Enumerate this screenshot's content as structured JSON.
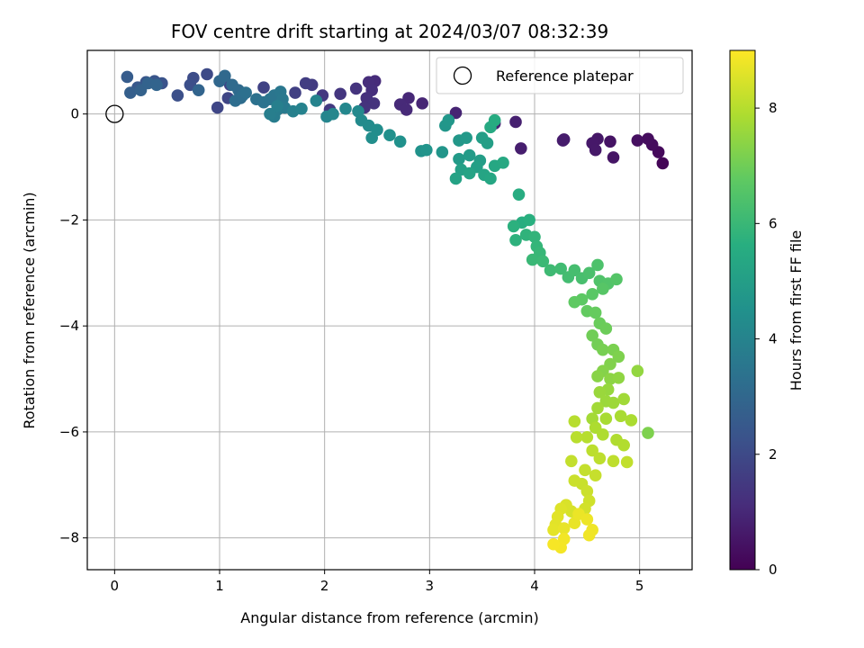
{
  "chart_data": {
    "type": "scatter",
    "title": "FOV centre drift starting at 2024/03/07 08:32:39",
    "xlabel": "Angular distance from reference (arcmin)",
    "ylabel": "Rotation from reference (arcmin)",
    "xlim": [
      -0.26,
      5.5
    ],
    "ylim": [
      -8.6,
      1.2
    ],
    "xticks": [
      0,
      1,
      2,
      3,
      4,
      5
    ],
    "yticks": [
      0,
      -2,
      -4,
      -6,
      -8
    ],
    "grid": true,
    "legend": {
      "placement": "top-right",
      "entries": [
        "Reference platepar"
      ]
    },
    "reference_point": {
      "x": 0,
      "y": 0,
      "label": "Reference platepar"
    },
    "colorbar": {
      "label": "Hours from first FF file",
      "range": [
        0,
        9
      ],
      "ticks": [
        0,
        2,
        4,
        6,
        8
      ],
      "colormap": "viridis"
    },
    "points": [
      [
        5.22,
        -0.93,
        0.1
      ],
      [
        5.18,
        -0.72,
        0.2
      ],
      [
        5.12,
        -0.58,
        0.25
      ],
      [
        5.08,
        -0.47,
        0.3
      ],
      [
        4.98,
        -0.5,
        0.35
      ],
      [
        4.72,
        -0.52,
        0.45
      ],
      [
        4.75,
        -0.82,
        0.5
      ],
      [
        4.6,
        -0.47,
        0.55
      ],
      [
        4.55,
        -0.55,
        0.6
      ],
      [
        4.58,
        -0.68,
        0.62
      ],
      [
        4.27,
        -0.5,
        0.7
      ],
      [
        4.28,
        -0.48,
        0.7
      ],
      [
        3.87,
        -0.65,
        0.75
      ],
      [
        3.82,
        -0.15,
        0.8
      ],
      [
        3.62,
        -0.18,
        0.85
      ],
      [
        3.25,
        0.02,
        0.9
      ],
      [
        2.93,
        0.2,
        0.95
      ],
      [
        2.8,
        0.3,
        1.0
      ],
      [
        2.72,
        0.18,
        1.05
      ],
      [
        2.78,
        0.08,
        1.05
      ],
      [
        2.48,
        0.62,
        1.1
      ],
      [
        2.42,
        0.6,
        1.15
      ],
      [
        2.45,
        0.45,
        1.2
      ],
      [
        2.4,
        0.3,
        1.25
      ],
      [
        2.47,
        0.2,
        1.3
      ],
      [
        2.38,
        0.12,
        1.3
      ],
      [
        2.3,
        0.48,
        1.35
      ],
      [
        2.15,
        0.38,
        1.4
      ],
      [
        1.98,
        0.35,
        1.45
      ],
      [
        2.05,
        0.08,
        1.5
      ],
      [
        1.88,
        0.55,
        1.55
      ],
      [
        1.82,
        0.58,
        1.6
      ],
      [
        1.72,
        0.4,
        1.7
      ],
      [
        1.42,
        0.5,
        1.75
      ],
      [
        1.1,
        0.55,
        1.8
      ],
      [
        1.08,
        0.3,
        1.85
      ],
      [
        0.98,
        0.12,
        1.9
      ],
      [
        0.88,
        0.75,
        2.0
      ],
      [
        0.75,
        0.68,
        2.1
      ],
      [
        0.72,
        0.55,
        2.15
      ],
      [
        0.6,
        0.35,
        2.2
      ],
      [
        0.45,
        0.58,
        2.3
      ],
      [
        0.38,
        0.62,
        2.35
      ],
      [
        0.3,
        0.6,
        2.4
      ],
      [
        0.22,
        0.5,
        2.5
      ],
      [
        0.12,
        0.7,
        2.6
      ],
      [
        0.15,
        0.4,
        2.7
      ],
      [
        0.25,
        0.45,
        2.8
      ],
      [
        0.32,
        0.58,
        2.85
      ],
      [
        0.4,
        0.55,
        2.9
      ],
      [
        0.8,
        0.45,
        2.9
      ],
      [
        1.0,
        0.62,
        3.0
      ],
      [
        1.05,
        0.72,
        3.05
      ],
      [
        1.12,
        0.55,
        3.1
      ],
      [
        1.18,
        0.45,
        3.1
      ],
      [
        1.2,
        0.3,
        3.15
      ],
      [
        1.15,
        0.25,
        3.2
      ],
      [
        1.22,
        0.35,
        3.25
      ],
      [
        1.25,
        0.4,
        3.3
      ],
      [
        1.35,
        0.28,
        3.35
      ],
      [
        1.42,
        0.22,
        3.4
      ],
      [
        1.48,
        0.28,
        3.45
      ],
      [
        1.52,
        0.35,
        3.5
      ],
      [
        1.58,
        0.42,
        3.55
      ],
      [
        1.6,
        0.28,
        3.6
      ],
      [
        1.62,
        0.12,
        3.65
      ],
      [
        1.55,
        0.08,
        3.7
      ],
      [
        1.52,
        -0.05,
        3.75
      ],
      [
        1.48,
        0.0,
        3.8
      ],
      [
        1.55,
        0.15,
        3.85
      ],
      [
        1.7,
        0.05,
        3.9
      ],
      [
        1.78,
        0.1,
        3.95
      ],
      [
        1.92,
        0.25,
        4.0
      ],
      [
        2.02,
        -0.05,
        4.05
      ],
      [
        2.08,
        0.0,
        4.1
      ],
      [
        2.2,
        0.1,
        4.15
      ],
      [
        2.32,
        0.05,
        4.2
      ],
      [
        2.35,
        -0.12,
        4.25
      ],
      [
        2.42,
        -0.22,
        4.3
      ],
      [
        2.5,
        -0.3,
        4.35
      ],
      [
        2.45,
        -0.45,
        4.4
      ],
      [
        2.62,
        -0.4,
        4.45
      ],
      [
        2.72,
        -0.52,
        4.5
      ],
      [
        2.92,
        -0.7,
        4.55
      ],
      [
        2.97,
        -0.68,
        4.6
      ],
      [
        3.12,
        -0.72,
        4.65
      ],
      [
        3.15,
        -0.22,
        4.7
      ],
      [
        3.18,
        -0.12,
        4.72
      ],
      [
        3.28,
        -0.5,
        4.75
      ],
      [
        3.35,
        -0.45,
        4.8
      ],
      [
        3.28,
        -0.85,
        4.85
      ],
      [
        3.38,
        -0.78,
        4.9
      ],
      [
        3.48,
        -0.88,
        4.95
      ],
      [
        3.5,
        -0.45,
        5.0
      ],
      [
        3.55,
        -0.55,
        5.02
      ],
      [
        3.45,
        -1.0,
        5.05
      ],
      [
        3.3,
        -1.05,
        5.1
      ],
      [
        3.25,
        -1.22,
        5.15
      ],
      [
        3.38,
        -1.12,
        5.2
      ],
      [
        3.52,
        -1.15,
        5.25
      ],
      [
        3.58,
        -1.22,
        5.3
      ],
      [
        3.62,
        -0.98,
        5.35
      ],
      [
        3.7,
        -0.92,
        5.4
      ],
      [
        3.58,
        -0.25,
        5.45
      ],
      [
        3.62,
        -0.12,
        5.5
      ],
      [
        3.85,
        -1.52,
        5.55
      ],
      [
        3.88,
        -2.05,
        5.6
      ],
      [
        3.95,
        -2.0,
        5.65
      ],
      [
        3.8,
        -2.12,
        5.7
      ],
      [
        3.82,
        -2.38,
        5.75
      ],
      [
        3.92,
        -2.28,
        5.8
      ],
      [
        4.0,
        -2.32,
        5.85
      ],
      [
        4.02,
        -2.5,
        5.9
      ],
      [
        4.05,
        -2.62,
        5.95
      ],
      [
        3.98,
        -2.75,
        6.0
      ],
      [
        4.08,
        -2.78,
        6.05
      ],
      [
        4.15,
        -2.95,
        6.1
      ],
      [
        4.25,
        -2.92,
        6.15
      ],
      [
        4.32,
        -3.08,
        6.2
      ],
      [
        4.38,
        -2.95,
        6.25
      ],
      [
        4.45,
        -3.1,
        6.3
      ],
      [
        4.52,
        -3.0,
        6.35
      ],
      [
        4.6,
        -2.85,
        6.4
      ],
      [
        4.62,
        -3.15,
        6.45
      ],
      [
        4.7,
        -3.2,
        6.5
      ],
      [
        4.78,
        -3.12,
        6.55
      ],
      [
        4.65,
        -3.3,
        6.6
      ],
      [
        4.55,
        -3.4,
        6.65
      ],
      [
        4.45,
        -3.5,
        6.7
      ],
      [
        4.38,
        -3.55,
        6.75
      ],
      [
        4.5,
        -3.72,
        6.8
      ],
      [
        4.58,
        -3.75,
        6.85
      ],
      [
        4.62,
        -3.95,
        6.9
      ],
      [
        4.68,
        -4.05,
        6.95
      ],
      [
        4.55,
        -4.18,
        7.0
      ],
      [
        4.6,
        -4.35,
        7.05
      ],
      [
        4.65,
        -4.45,
        7.1
      ],
      [
        4.75,
        -4.45,
        7.15
      ],
      [
        4.8,
        -4.58,
        7.2
      ],
      [
        4.72,
        -4.72,
        7.25
      ],
      [
        4.65,
        -4.85,
        7.3
      ],
      [
        4.6,
        -4.95,
        7.35
      ],
      [
        4.72,
        -5.0,
        7.4
      ],
      [
        4.8,
        -4.98,
        7.45
      ],
      [
        4.98,
        -4.85,
        7.5
      ],
      [
        4.7,
        -5.2,
        7.55
      ],
      [
        4.62,
        -5.25,
        7.6
      ],
      [
        4.68,
        -5.42,
        7.62
      ],
      [
        4.75,
        -5.45,
        7.65
      ],
      [
        4.85,
        -5.38,
        7.7
      ],
      [
        4.6,
        -5.55,
        7.72
      ],
      [
        4.55,
        -5.75,
        7.75
      ],
      [
        4.68,
        -5.75,
        7.8
      ],
      [
        4.82,
        -5.7,
        7.82
      ],
      [
        4.92,
        -5.78,
        7.85
      ],
      [
        4.58,
        -5.92,
        7.88
      ],
      [
        4.65,
        -6.05,
        7.9
      ],
      [
        4.78,
        -6.15,
        7.92
      ],
      [
        4.85,
        -6.25,
        7.95
      ],
      [
        5.08,
        -6.02,
        7.2
      ],
      [
        4.5,
        -6.1,
        8.0
      ],
      [
        4.38,
        -5.8,
        8.02
      ],
      [
        4.4,
        -6.1,
        8.05
      ],
      [
        4.55,
        -6.35,
        8.08
      ],
      [
        4.62,
        -6.5,
        8.1
      ],
      [
        4.75,
        -6.55,
        8.12
      ],
      [
        4.88,
        -6.57,
        8.15
      ],
      [
        4.35,
        -6.55,
        8.18
      ],
      [
        4.48,
        -6.72,
        8.2
      ],
      [
        4.58,
        -6.82,
        8.22
      ],
      [
        4.45,
        -6.98,
        8.25
      ],
      [
        4.38,
        -6.92,
        8.28
      ],
      [
        4.5,
        -7.12,
        8.3
      ],
      [
        4.52,
        -7.3,
        8.35
      ],
      [
        4.48,
        -7.45,
        8.4
      ],
      [
        4.35,
        -7.5,
        8.45
      ],
      [
        4.3,
        -7.38,
        8.5
      ],
      [
        4.25,
        -7.45,
        8.55
      ],
      [
        4.22,
        -7.6,
        8.6
      ],
      [
        4.2,
        -7.75,
        8.62
      ],
      [
        4.18,
        -7.85,
        8.65
      ],
      [
        4.28,
        -7.82,
        8.7
      ],
      [
        4.38,
        -7.72,
        8.72
      ],
      [
        4.42,
        -7.55,
        8.75
      ],
      [
        4.5,
        -7.65,
        8.78
      ],
      [
        4.55,
        -7.85,
        8.8
      ],
      [
        4.52,
        -7.95,
        8.82
      ],
      [
        4.28,
        -8.02,
        8.85
      ],
      [
        4.25,
        -8.18,
        8.88
      ],
      [
        4.18,
        -8.12,
        8.9
      ]
    ]
  }
}
